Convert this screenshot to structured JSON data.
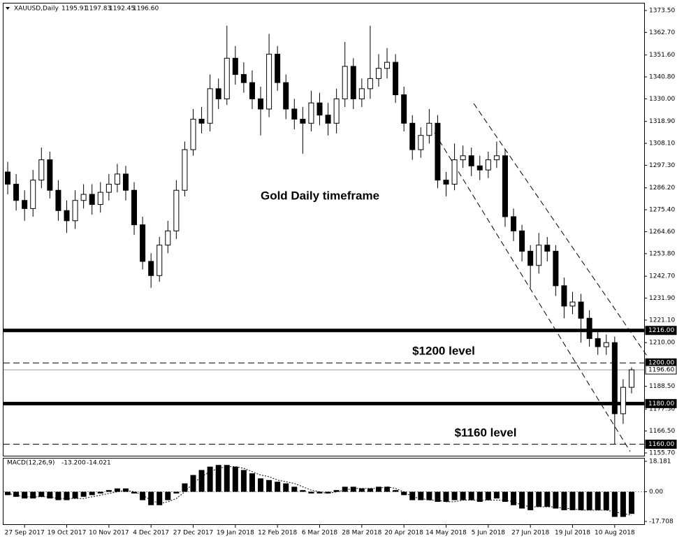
{
  "chart_data": [
    {
      "type": "candlestick",
      "symbol": "XAUUSD,Daily",
      "ohlc_text": [
        "1195.91",
        "1197.83",
        "1192.45",
        "1196.60"
      ],
      "categories": [
        null,
        null,
        "27 Sep 2017",
        null,
        null,
        null,
        null,
        "19 Oct 2017",
        null,
        null,
        null,
        null,
        "10 Nov 2017",
        null,
        null,
        null,
        null,
        "4 Dec 2017",
        null,
        null,
        null,
        null,
        "27 Dec 2017",
        null,
        null,
        null,
        null,
        "19 Jan 2018",
        null,
        null,
        null,
        null,
        "12 Feb 2018",
        null,
        null,
        null,
        null,
        "6 Mar 2018",
        null,
        null,
        null,
        null,
        "28 Mar 2018",
        null,
        null,
        null,
        null,
        "20 Apr 2018",
        null,
        null,
        null,
        null,
        "14 May 2018",
        null,
        null,
        null,
        null,
        "5 Jun 2018",
        null,
        null,
        null,
        null,
        "27 Jun 2018",
        null,
        null,
        null,
        null,
        "19 Jul 2018",
        null,
        null,
        null,
        null,
        "10 Aug 2018",
        null,
        null
      ],
      "open": [
        1294,
        1288,
        1280,
        1276,
        1290,
        1300,
        1285,
        1275,
        1270,
        1280,
        1283,
        1278,
        1284,
        1288,
        1293,
        1285,
        1268,
        1250,
        1243,
        1258,
        1265,
        1285,
        1305,
        1320,
        1318,
        1335,
        1330,
        1350,
        1342,
        1338,
        1330,
        1325,
        1352,
        1338,
        1325,
        1320,
        1318,
        1328,
        1322,
        1318,
        1330,
        1346,
        1330,
        1335,
        1340,
        1345,
        1348,
        1332,
        1318,
        1305,
        1312,
        1318,
        1290,
        1288,
        1300,
        1302,
        1297,
        1295,
        1300,
        1302,
        1272,
        1265,
        1255,
        1248,
        1258,
        1255,
        1238,
        1228,
        1230,
        1222,
        1212,
        1208,
        1210,
        1175,
        1188
      ],
      "high": [
        1299,
        1293,
        1285,
        1295,
        1306,
        1304,
        1290,
        1280,
        1285,
        1288,
        1288,
        1289,
        1293,
        1298,
        1297,
        1289,
        1272,
        1254,
        1262,
        1270,
        1290,
        1309,
        1325,
        1326,
        1342,
        1340,
        1366,
        1356,
        1348,
        1344,
        1336,
        1362,
        1356,
        1342,
        1330,
        1326,
        1334,
        1333,
        1328,
        1335,
        1358,
        1350,
        1340,
        1366,
        1352,
        1355,
        1352,
        1336,
        1322,
        1316,
        1325,
        1322,
        1294,
        1308,
        1307,
        1306,
        1302,
        1304,
        1309,
        1305,
        1276,
        1268,
        1258,
        1264,
        1262,
        1258,
        1242,
        1235,
        1234,
        1226,
        1216,
        1214,
        1213,
        1192,
        1197.8
      ],
      "low": [
        1283,
        1275,
        1270,
        1272,
        1286,
        1281,
        1270,
        1264,
        1266,
        1276,
        1273,
        1274,
        1280,
        1284,
        1280,
        1263,
        1246,
        1237,
        1240,
        1254,
        1261,
        1282,
        1302,
        1313,
        1314,
        1325,
        1327,
        1337,
        1333,
        1325,
        1312,
        1321,
        1334,
        1320,
        1315,
        1303,
        1314,
        1317,
        1312,
        1313,
        1326,
        1325,
        1326,
        1330,
        1336,
        1340,
        1328,
        1314,
        1300,
        1301,
        1308,
        1286,
        1282,
        1285,
        1296,
        1292,
        1290,
        1291,
        1296,
        1267,
        1260,
        1250,
        1237,
        1244,
        1250,
        1233,
        1222,
        1224,
        1210,
        1208,
        1204,
        1204,
        1160,
        1170,
        1185
      ],
      "close": [
        1288,
        1280,
        1276,
        1290,
        1300,
        1285,
        1275,
        1270,
        1280,
        1283,
        1278,
        1284,
        1288,
        1293,
        1285,
        1268,
        1250,
        1243,
        1258,
        1265,
        1285,
        1305,
        1320,
        1318,
        1335,
        1330,
        1350,
        1342,
        1338,
        1330,
        1325,
        1352,
        1338,
        1325,
        1320,
        1318,
        1328,
        1322,
        1318,
        1330,
        1346,
        1330,
        1335,
        1340,
        1345,
        1348,
        1332,
        1318,
        1305,
        1312,
        1318,
        1290,
        1288,
        1300,
        1302,
        1297,
        1295,
        1300,
        1302,
        1272,
        1265,
        1255,
        1248,
        1258,
        1255,
        1238,
        1228,
        1230,
        1222,
        1212,
        1208,
        1210,
        1175,
        1188,
        1196.6
      ],
      "up_color": "#ffffff",
      "down_color": "#000000",
      "ylim": [
        1155.7,
        1373.5
      ],
      "yticks": [
        {
          "value": 1373.5,
          "label": "1373.50"
        },
        {
          "value": 1362.7,
          "label": "1362.70"
        },
        {
          "value": 1351.6,
          "label": "1351.60"
        },
        {
          "value": 1340.8,
          "label": "1340.80"
        },
        {
          "value": 1330,
          "label": "1330.00"
        },
        {
          "value": 1318.9,
          "label": "1318.90"
        },
        {
          "value": 1308.1,
          "label": "1308.10"
        },
        {
          "value": 1297.3,
          "label": "1297.30"
        },
        {
          "value": 1286.2,
          "label": "1286.20"
        },
        {
          "value": 1275.4,
          "label": "1275.40"
        },
        {
          "value": 1264.6,
          "label": "1264.60"
        },
        {
          "value": 1253.8,
          "label": "1253.80"
        },
        {
          "value": 1242.7,
          "label": "1242.70"
        },
        {
          "value": 1231.9,
          "label": "1231.90"
        },
        {
          "value": 1221.1,
          "label": "1221.10"
        },
        {
          "value": 1210,
          "label": "1210.00"
        },
        {
          "value": 1188.5,
          "label": "1188.50"
        },
        {
          "value": 1177.3,
          "label": "1177.30"
        },
        {
          "value": 1166.5,
          "label": "1166.50"
        },
        {
          "value": 1155.7,
          "label": "1155.70"
        }
      ],
      "levels": [
        {
          "value": 1216,
          "label": "1216.00",
          "style": "thick"
        },
        {
          "value": 1200,
          "label": "1200.00",
          "style": "dashed"
        },
        {
          "value": 1196.6,
          "label": "1196.60",
          "style": "thin"
        },
        {
          "value": 1180,
          "label": "1180.00",
          "style": "thick"
        },
        {
          "value": 1160,
          "label": "1160.00",
          "style": "dashed"
        }
      ],
      "annotations": [
        "Gold Daily timeframe",
        "$1200 level",
        "$1160 level"
      ],
      "grid": false
    },
    {
      "type": "macd",
      "label": "MACD(12,26,9)",
      "value_texts": [
        "-13.200",
        "-14.021"
      ],
      "histogram": [
        -2,
        -3,
        -4,
        -4,
        -3,
        -4,
        -5,
        -5,
        -4,
        -3,
        -2,
        -1,
        1,
        2,
        2,
        -1,
        -5,
        -8,
        -8,
        -5,
        -1,
        5,
        10,
        13,
        15,
        16,
        16,
        15,
        13,
        11,
        8,
        7,
        6,
        5,
        3,
        1,
        -1,
        -1,
        -1,
        1,
        3,
        3,
        2,
        2,
        3,
        3,
        1,
        -2,
        -5,
        -5,
        -5,
        -6,
        -6,
        -5,
        -5,
        -5,
        -6,
        -5,
        -4,
        -6,
        -8,
        -10,
        -11,
        -9,
        -9,
        -10,
        -11,
        -11,
        -11,
        -11,
        -11,
        -11,
        -15,
        -15,
        -13.2
      ],
      "signal": [
        -1,
        -2,
        -3,
        -3,
        -3,
        -3,
        -4,
        -4,
        -4,
        -4,
        -3,
        -2,
        -1,
        0,
        1,
        0,
        -2,
        -5,
        -7,
        -6,
        -4,
        0,
        5,
        9,
        12,
        14,
        15,
        15,
        14,
        12,
        10,
        9,
        7,
        6,
        5,
        3,
        1,
        0,
        -1,
        0,
        1,
        2,
        2,
        2,
        2,
        3,
        2,
        0,
        -3,
        -4,
        -5,
        -5,
        -6,
        -6,
        -5,
        -5,
        -5,
        -5,
        -5,
        -5,
        -6,
        -8,
        -9,
        -9,
        -9,
        -9,
        -10,
        -10,
        -11,
        -11,
        -11,
        -11,
        -12,
        -13,
        -14.021
      ],
      "color": "#000000",
      "ylim": [
        -17.708,
        18.181
      ],
      "yticks": [
        18.181,
        {
          "value": 0,
          "label": "0.00"
        },
        -17.708
      ]
    }
  ]
}
